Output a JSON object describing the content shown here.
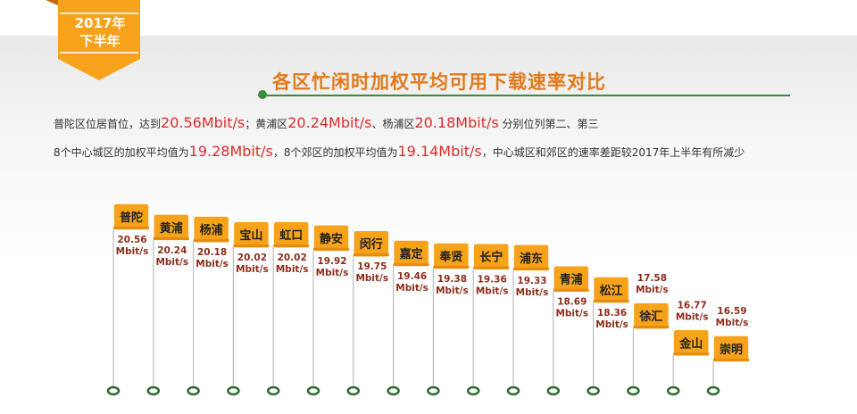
{
  "badge": {
    "line1": "2017年",
    "line2": "下半年"
  },
  "title": "各区忙闲时加权平均可用下载速率对比",
  "summary": {
    "line1": {
      "t1": "普陀区位居首位，达到",
      "v1": "20.56Mbit/s",
      "t2": "；黄浦区",
      "v2": "20.24Mbit/s",
      "t3": "、杨浦区",
      "v3": "20.18Mbit/s",
      "t4": "分别位列第二、第三"
    },
    "line2": {
      "t1": "8个中心城区的加权平均值为",
      "v1": "19.28Mbit/s",
      "t2": "，8个郊区的加权平均值为",
      "v2": "19.14Mbit/s",
      "t3": "，中心城区和郊区的速率差距较2017年上半年有所减少"
    }
  },
  "colors": {
    "flag": "#f7a21b",
    "flag_border": "#ffffff",
    "value_text": "#8b2d1b",
    "pole": "#bbbbbb",
    "base": "#2f6b2f",
    "title": "#e07a1c",
    "highlight": "#d92c2c"
  },
  "chart_data": {
    "type": "bar",
    "unit": "Mbit/s",
    "categories": [
      "普陀",
      "黄浦",
      "杨浦",
      "宝山",
      "虹口",
      "静安",
      "闵行",
      "嘉定",
      "奉贤",
      "长宁",
      "浦东",
      "青浦",
      "松江",
      "徐汇",
      "金山",
      "崇明"
    ],
    "values": [
      20.56,
      20.24,
      20.18,
      20.02,
      20.02,
      19.92,
      19.75,
      19.46,
      19.38,
      19.36,
      19.33,
      18.69,
      18.36,
      17.58,
      16.77,
      16.59
    ],
    "value_labels": [
      "20.56",
      "20.24",
      "20.18",
      "20.02",
      "20.02",
      "19.92",
      "19.75",
      "19.46",
      "19.38",
      "19.36",
      "19.33",
      "18.69",
      "18.36",
      "17.58",
      "16.77",
      "16.59"
    ],
    "value_positions": [
      "below",
      "below",
      "below",
      "below",
      "below",
      "below",
      "below",
      "below",
      "below",
      "below",
      "below",
      "below",
      "below",
      "above",
      "above",
      "above"
    ]
  }
}
